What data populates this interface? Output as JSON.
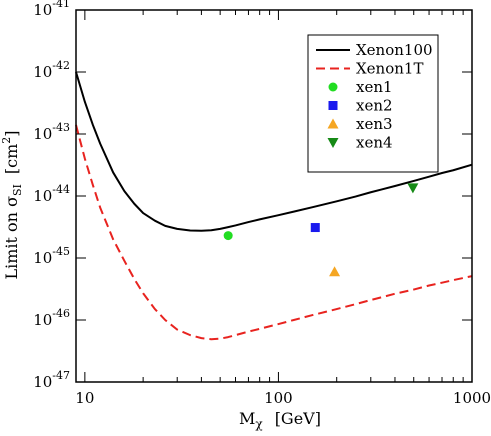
{
  "chart_data": {
    "type": "line",
    "xlabel": {
      "main": "M",
      "sub": "χ",
      "unit": "[GeV]"
    },
    "ylabel": {
      "main": "Limit on σ",
      "sub": "SI",
      "unit": "[cm",
      "sup": "2",
      "close": "]"
    },
    "xscale": "log",
    "yscale": "log",
    "xlim": [
      9,
      1000
    ],
    "ylim": [
      1e-47,
      1e-41
    ],
    "x_ticks": [
      {
        "value": 10,
        "label": "10"
      },
      {
        "value": 100,
        "label": "100"
      },
      {
        "value": 1000,
        "label": "1000"
      }
    ],
    "y_ticks": [
      {
        "value": 1e-41,
        "base": "10",
        "exp": "-41"
      },
      {
        "value": 1e-42,
        "base": "10",
        "exp": "-42"
      },
      {
        "value": 1e-43,
        "base": "10",
        "exp": "-43"
      },
      {
        "value": 1e-44,
        "base": "10",
        "exp": "-44"
      },
      {
        "value": 1e-45,
        "base": "10",
        "exp": "-45"
      },
      {
        "value": 1e-46,
        "base": "10",
        "exp": "-46"
      },
      {
        "value": 1e-47,
        "base": "10",
        "exp": "-47"
      }
    ],
    "legend_position": "top-right",
    "series": [
      {
        "name": "Xenon100",
        "kind": "line",
        "color": "#000000",
        "dash": "solid",
        "x": [
          9,
          10,
          11,
          12,
          14,
          16,
          18,
          20,
          23,
          26,
          30,
          35,
          40,
          45,
          50,
          55,
          60,
          70,
          80,
          100,
          120,
          150,
          200,
          250,
          300,
          400,
          500,
          600,
          700,
          800,
          1000
        ],
        "y": [
          1e-42,
          3.3e-43,
          1.4e-43,
          7e-44,
          2.4e-44,
          1.2e-44,
          7.5e-45,
          5.3e-45,
          4e-45,
          3.3e-45,
          2.95e-45,
          2.78e-45,
          2.75e-45,
          2.8e-45,
          2.95e-45,
          3.15e-45,
          3.35e-45,
          3.8e-45,
          4.2e-45,
          4.9e-45,
          5.6e-45,
          6.6e-45,
          8.2e-45,
          9.8e-45,
          1.15e-44,
          1.45e-44,
          1.75e-44,
          2.05e-44,
          2.35e-44,
          2.6e-44,
          3.2e-44
        ]
      },
      {
        "name": "Xenon1T",
        "kind": "line",
        "color": "#e8231f",
        "dash": "dashed",
        "x": [
          9,
          10,
          11,
          12,
          14,
          16,
          18,
          20,
          23,
          26,
          30,
          35,
          40,
          45,
          50,
          55,
          60,
          70,
          80,
          100,
          120,
          150,
          200,
          250,
          300,
          400,
          500,
          600,
          700,
          800,
          1000
        ],
        "y": [
          1.4e-43,
          4e-44,
          1.5e-44,
          6.5e-45,
          2e-45,
          9e-46,
          4.6e-46,
          2.7e-46,
          1.5e-46,
          1e-46,
          7e-47,
          5.7e-47,
          5.1e-47,
          4.9e-47,
          5e-47,
          5.3e-47,
          5.7e-47,
          6.5e-47,
          7.2e-47,
          8.6e-47,
          1e-46,
          1.2e-46,
          1.5e-46,
          1.8e-46,
          2.1e-46,
          2.65e-46,
          3.1e-46,
          3.6e-46,
          4e-46,
          4.4e-46,
          5.1e-46
        ]
      },
      {
        "name": "xen1",
        "kind": "point",
        "marker": "circle",
        "color": "#22dd22",
        "x": [
          55
        ],
        "y": [
          2.3e-45
        ]
      },
      {
        "name": "xen2",
        "kind": "point",
        "marker": "square",
        "color": "#1a1aee",
        "x": [
          155
        ],
        "y": [
          3.1e-45
        ]
      },
      {
        "name": "xen3",
        "kind": "point",
        "marker": "triangle-up",
        "color": "#f5a623",
        "x": [
          195
        ],
        "y": [
          6e-46
        ]
      },
      {
        "name": "xen4",
        "kind": "point",
        "marker": "triangle-down",
        "color": "#168a16",
        "x": [
          495
        ],
        "y": [
          1.35e-44
        ]
      }
    ]
  }
}
